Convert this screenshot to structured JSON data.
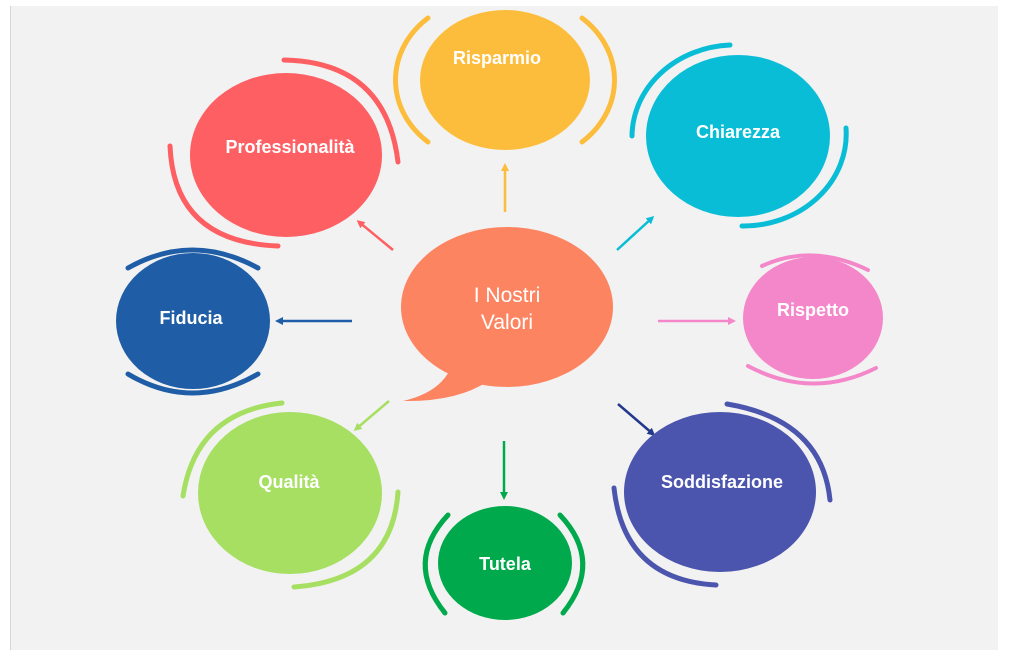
{
  "diagram": {
    "center": {
      "line1": "I Nostri",
      "line2": "Valori",
      "color": "#fd8460"
    },
    "values": [
      {
        "label": "Risparmio",
        "color": "#fdbd3c"
      },
      {
        "label": "Chiarezza",
        "color": "#0abdd7"
      },
      {
        "label": "Rispetto",
        "color": "#f487c9"
      },
      {
        "label": "Soddisfazione",
        "color": "#4c55ad"
      },
      {
        "label": "Tutela",
        "color": "#00a94c"
      },
      {
        "label": "Qualità",
        "color": "#a6df62"
      },
      {
        "label": "Fiducia",
        "color": "#1f5ea6"
      },
      {
        "label": "Professionalità",
        "color": "#fd5f63"
      }
    ],
    "background_color": "#f2f2f2"
  }
}
